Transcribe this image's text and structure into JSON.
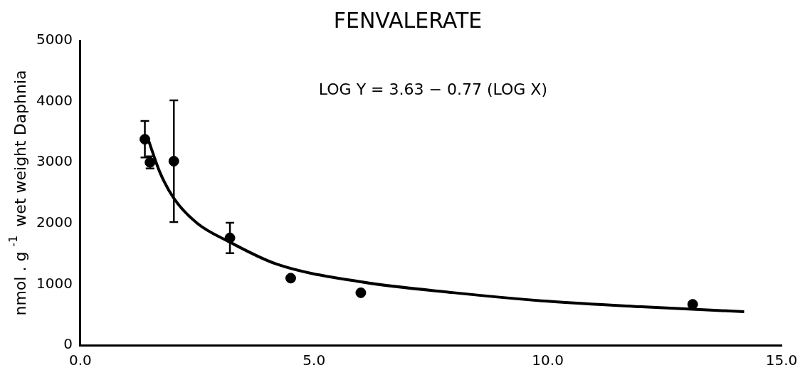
{
  "chart_data": {
    "type": "scatter",
    "title": "FENVALERATE",
    "ylabel": "nmol . g $^{-1}$ wet weight Daphnia",
    "annotations": [
      "LOG Y = 3.63 − 0.77 (LOG X)"
    ],
    "xlim": [
      0,
      15
    ],
    "xticks": [
      {
        "value": 0,
        "label": "0.0"
      },
      {
        "value": 5,
        "label": "5.0"
      },
      {
        "value": 10,
        "label": "10.0"
      },
      {
        "value": 15,
        "label": "15.0"
      }
    ],
    "ylim": [
      0,
      5000
    ],
    "yticks": [
      0,
      1000,
      2000,
      3000,
      4000,
      5000
    ],
    "grid": false,
    "legend": false,
    "series": [
      {
        "type": "scatter",
        "color": "#000000",
        "marker": "circle",
        "x": [
          1.38,
          1.49,
          2.0,
          3.2,
          4.5,
          6.0,
          13.1
        ],
        "values": [
          3380,
          3000,
          3020,
          1760,
          1100,
          860,
          670
        ],
        "errors": [
          300,
          100,
          1000,
          250,
          null,
          null,
          null
        ]
      },
      {
        "type": "line",
        "color": "#000000",
        "marker": "none",
        "line_style": "solid",
        "x": [
          1.45,
          1.7,
          2.0,
          2.5,
          3.2,
          4.2,
          6.0,
          8.0,
          10.0,
          12.0,
          14.2
        ],
        "values": [
          3380,
          2840,
          2410,
          2000,
          1690,
          1330,
          1040,
          860,
          720,
          630,
          550
        ]
      }
    ]
  }
}
